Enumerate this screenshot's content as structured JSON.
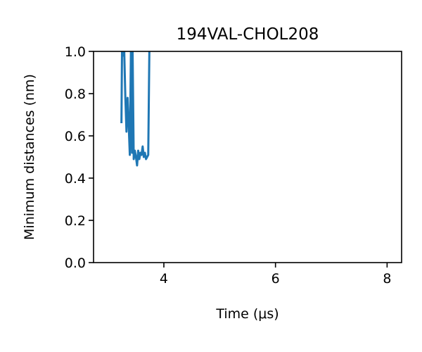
{
  "chart_data": {
    "type": "line",
    "title": "194VAL-CHOL208",
    "xlabel": "Time (μs)",
    "ylabel": "Minimum distances (nm)",
    "xlim": [
      2.74,
      8.26
    ],
    "ylim": [
      0.0,
      1.0
    ],
    "xticks": [
      4,
      6,
      8
    ],
    "xtick_labels": [
      "4",
      "6",
      "8"
    ],
    "yticks": [
      0.0,
      0.2,
      0.4,
      0.6,
      0.8,
      1.0
    ],
    "ytick_labels": [
      "0.0",
      "0.2",
      "0.4",
      "0.6",
      "0.8",
      "1.0"
    ],
    "grid": false,
    "legend": "none",
    "series": [
      {
        "color": "#1f77b4",
        "x": [
          3.24,
          3.25,
          3.27,
          3.29,
          3.31,
          3.33,
          3.35,
          3.37,
          3.39,
          3.41,
          3.43,
          3.44,
          3.46,
          3.48,
          3.5,
          3.52,
          3.54,
          3.56,
          3.58,
          3.6,
          3.62,
          3.64,
          3.66,
          3.68,
          3.7,
          3.72,
          3.74
        ],
        "y": [
          0.66,
          1.0,
          0.98,
          1.0,
          0.78,
          0.62,
          0.78,
          0.65,
          0.51,
          1.0,
          0.52,
          1.0,
          0.49,
          0.53,
          0.5,
          0.46,
          0.53,
          0.49,
          0.52,
          0.51,
          0.55,
          0.5,
          0.52,
          0.49,
          0.5,
          0.51,
          1.0
        ]
      }
    ]
  }
}
